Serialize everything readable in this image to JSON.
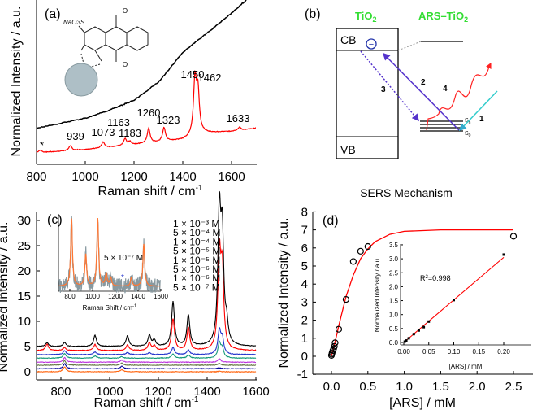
{
  "chart_data": [
    {
      "panel": "(a)",
      "type": "line",
      "xlabel": "Raman shift / cm",
      "xlabel_sup": "-1",
      "ylabel": "Normalized Intensity / a.u.",
      "xlim": [
        800,
        1700
      ],
      "xticks": [
        "800",
        "1000",
        "1200",
        "1400",
        "1600"
      ],
      "ylim": [
        0,
        1
      ],
      "series": [
        {
          "color": "#000000",
          "points": [
            [
              800,
              0.22
            ],
            [
              900,
              0.25
            ],
            [
              1000,
              0.28
            ],
            [
              1100,
              0.33
            ],
            [
              1200,
              0.39
            ],
            [
              1300,
              0.5
            ],
            [
              1400,
              0.68
            ],
            [
              1500,
              0.8
            ],
            [
              1600,
              0.92
            ],
            [
              1660,
              1.0
            ]
          ]
        },
        {
          "color": "#ff0000",
          "baseline": [
            [
              800,
              0.07
            ],
            [
              1000,
              0.09
            ],
            [
              1200,
              0.12
            ],
            [
              1400,
              0.15
            ],
            [
              1480,
              0.19
            ],
            [
              1600,
              0.2
            ],
            [
              1700,
              0.22
            ]
          ],
          "peaks": [
            [
              815,
              0.015
            ],
            [
              939,
              0.03
            ],
            [
              1073,
              0.035
            ],
            [
              1163,
              0.04
            ],
            [
              1183,
              0.02
            ],
            [
              1260,
              0.09
            ],
            [
              1323,
              0.085
            ],
            [
              1450,
              0.33
            ],
            [
              1462,
              0.25
            ],
            [
              1633,
              0.02
            ]
          ]
        }
      ],
      "annotations": [
        "*",
        "939",
        "1073",
        "1163",
        "1183",
        "1260",
        "1323",
        "1450",
        "1462",
        "1633"
      ],
      "molecule_label": "NaO3S"
    },
    {
      "panel": "(b)",
      "type": "diagram",
      "title": "SERS Mechanism",
      "tio2_label": "TiO",
      "tio2_sub": "2",
      "ars_label": "ARS–TiO",
      "ars_sub": "2",
      "cb": "CB",
      "vb": "VB",
      "electron": "−",
      "steps": [
        "1",
        "2",
        "3",
        "4"
      ],
      "states": [
        "S",
        "S"
      ],
      "state_subs": [
        "n",
        "0"
      ],
      "colors": {
        "label": "#33dd33",
        "electron": "#2233aa",
        "arrow": "#5533cc",
        "wave": "#ff2222",
        "excite": "#33cccc"
      }
    },
    {
      "panel": "(c)",
      "type": "line",
      "xlabel": "Raman shift / cm",
      "xlabel_sup": "-1",
      "ylabel": "Normalized Intensity / a.u.",
      "xlim": [
        700,
        1600
      ],
      "ylim": [
        -0.8,
        31.5
      ],
      "xticks": [
        "800",
        "1000",
        "1200",
        "1400",
        "1600"
      ],
      "yticks": [
        "0",
        "5",
        "10",
        "15",
        "20",
        "25",
        "30"
      ],
      "series": [
        {
          "name": "1 × 10⁻³ M",
          "color": "#000000",
          "offset": 5.0,
          "peaks": [
            [
              743,
              0.8
            ],
            [
              815,
              0.8
            ],
            [
              940,
              2.2
            ],
            [
              1073,
              2.1
            ],
            [
              1163,
              2.2
            ],
            [
              1183,
              1.2
            ],
            [
              1260,
              8.8
            ],
            [
              1323,
              6.2
            ],
            [
              1450,
              25.4
            ],
            [
              1462,
              20.5
            ],
            [
              1480,
              3.5
            ]
          ]
        },
        {
          "name": "5 × 10⁻⁴ M",
          "color": "#ff0000",
          "offset": 4.2,
          "peaks": [
            [
              743,
              1.3
            ],
            [
              815,
              0.6
            ],
            [
              940,
              1.2
            ],
            [
              1073,
              1.1
            ],
            [
              1163,
              1.5
            ],
            [
              1183,
              0.9
            ],
            [
              1260,
              6.3
            ],
            [
              1323,
              4.5
            ],
            [
              1450,
              18.5
            ],
            [
              1462,
              15.0
            ]
          ]
        },
        {
          "name": "1 × 10⁻⁴ M",
          "color": "#2233cc",
          "offset": 3.4,
          "peaks": [
            [
              815,
              0.8
            ],
            [
              940,
              0.5
            ],
            [
              1073,
              0.4
            ],
            [
              1163,
              0.4
            ],
            [
              1260,
              1.4
            ],
            [
              1323,
              0.9
            ],
            [
              1450,
              4.6
            ],
            [
              1462,
              3.0
            ]
          ]
        },
        {
          "name": "5 × 10⁻⁵ M",
          "color": "#119977",
          "offset": 2.7,
          "peaks": [
            [
              815,
              0.9
            ],
            [
              940,
              0.4
            ],
            [
              1050,
              0.3
            ],
            [
              1260,
              0.8
            ],
            [
              1323,
              0.6
            ],
            [
              1450,
              2.9
            ],
            [
              1462,
              1.8
            ]
          ]
        },
        {
          "name": "1 × 10⁻⁵ M",
          "color": "#bb33dd",
          "offset": 1.9,
          "peaks": [
            [
              815,
              0.9
            ],
            [
              1050,
              0.4
            ],
            [
              1450,
              0.7
            ]
          ]
        },
        {
          "name": "5 × 10⁻⁶ M",
          "color": "#667744",
          "offset": 1.3,
          "peaks": [
            [
              815,
              0.9
            ],
            [
              1050,
              0.4
            ],
            [
              1450,
              0.4
            ]
          ]
        },
        {
          "name": "1 × 10⁻⁶ M",
          "color": "#000099",
          "offset": 0.6,
          "peaks": [
            [
              815,
              1.0
            ],
            [
              1050,
              0.5
            ],
            [
              1450,
              0.2
            ]
          ]
        },
        {
          "name": "5 × 10⁻⁷ M",
          "color": "#ff6611",
          "offset": 0.0,
          "peaks": [
            [
              815,
              1.0
            ],
            [
              1050,
              0.4
            ],
            [
              1450,
              0.1
            ]
          ]
        }
      ],
      "inset": {
        "label": "5 × 10⁻⁷ M",
        "xlabel": "Raman Shift / cm",
        "xlabel_sup": "-1",
        "xlim": [
          700,
          1600
        ],
        "xticks": [
          "800",
          "1000",
          "1200",
          "1400",
          "1600"
        ],
        "color": "#ff7733",
        "noise_color": "#8899a0",
        "marker": "*",
        "peaks": [
          [
            815,
            1.6
          ],
          [
            940,
            0.75
          ],
          [
            1045,
            1.6
          ],
          [
            1120,
            0.3
          ],
          [
            1160,
            0.2
          ],
          [
            1340,
            0.2
          ],
          [
            1450,
            1.0
          ]
        ]
      }
    },
    {
      "panel": "(d)",
      "type": "scatter",
      "xlabel": "[ARS] / mM",
      "ylabel": "Normalized Intensity / a.u.",
      "xlim": [
        -0.25,
        2.65
      ],
      "ylim": [
        -1,
        8
      ],
      "xticks": [
        "0.0",
        "0.5",
        "1.0",
        "1.5",
        "2.0",
        "2.5"
      ],
      "yticks": [
        "-1",
        "0",
        "1",
        "2",
        "3",
        "4",
        "5",
        "6",
        "7",
        "8"
      ],
      "points": [
        [
          0.0,
          0.05
        ],
        [
          0.005,
          0.12
        ],
        [
          0.01,
          0.2
        ],
        [
          0.02,
          0.32
        ],
        [
          0.03,
          0.42
        ],
        [
          0.04,
          0.55
        ],
        [
          0.05,
          0.75
        ],
        [
          0.1,
          1.5
        ],
        [
          0.2,
          3.15
        ],
        [
          0.3,
          5.25
        ],
        [
          0.4,
          5.82
        ],
        [
          0.5,
          6.08
        ],
        [
          2.5,
          6.65
        ]
      ],
      "fit": {
        "color": "#ff0000",
        "points": [
          [
            0,
            0
          ],
          [
            0.05,
            0.8
          ],
          [
            0.1,
            1.7
          ],
          [
            0.2,
            3.3
          ],
          [
            0.3,
            4.5
          ],
          [
            0.4,
            5.4
          ],
          [
            0.5,
            5.95
          ],
          [
            0.6,
            6.35
          ],
          [
            0.8,
            6.75
          ],
          [
            1.0,
            6.92
          ],
          [
            1.5,
            7.0
          ],
          [
            2.5,
            7.0
          ]
        ]
      },
      "inset": {
        "xlabel": "[ARS] / mM",
        "ylabel": "Normalized Intensity / a.u.",
        "xlim": [
          -0.01,
          0.225
        ],
        "ylim": [
          -0.1,
          3.5
        ],
        "xticks": [
          "0.00",
          "0.05",
          "0.10",
          "0.15",
          "0.20"
        ],
        "yticks": [
          "0.0",
          "0.5",
          "1.0",
          "1.5",
          "2.0",
          "2.5",
          "3.0",
          "3.5"
        ],
        "points": [
          [
            0.002,
            0.03
          ],
          [
            0.005,
            0.07
          ],
          [
            0.01,
            0.15
          ],
          [
            0.02,
            0.3
          ],
          [
            0.03,
            0.43
          ],
          [
            0.04,
            0.55
          ],
          [
            0.05,
            0.75
          ],
          [
            0.1,
            1.52
          ],
          [
            0.2,
            3.15
          ]
        ],
        "fit_points": [
          [
            0,
            0
          ],
          [
            0.2,
            3.05
          ]
        ],
        "r2_label": "R",
        "r2_sup": "2",
        "r2_value": "=0.998"
      }
    }
  ]
}
